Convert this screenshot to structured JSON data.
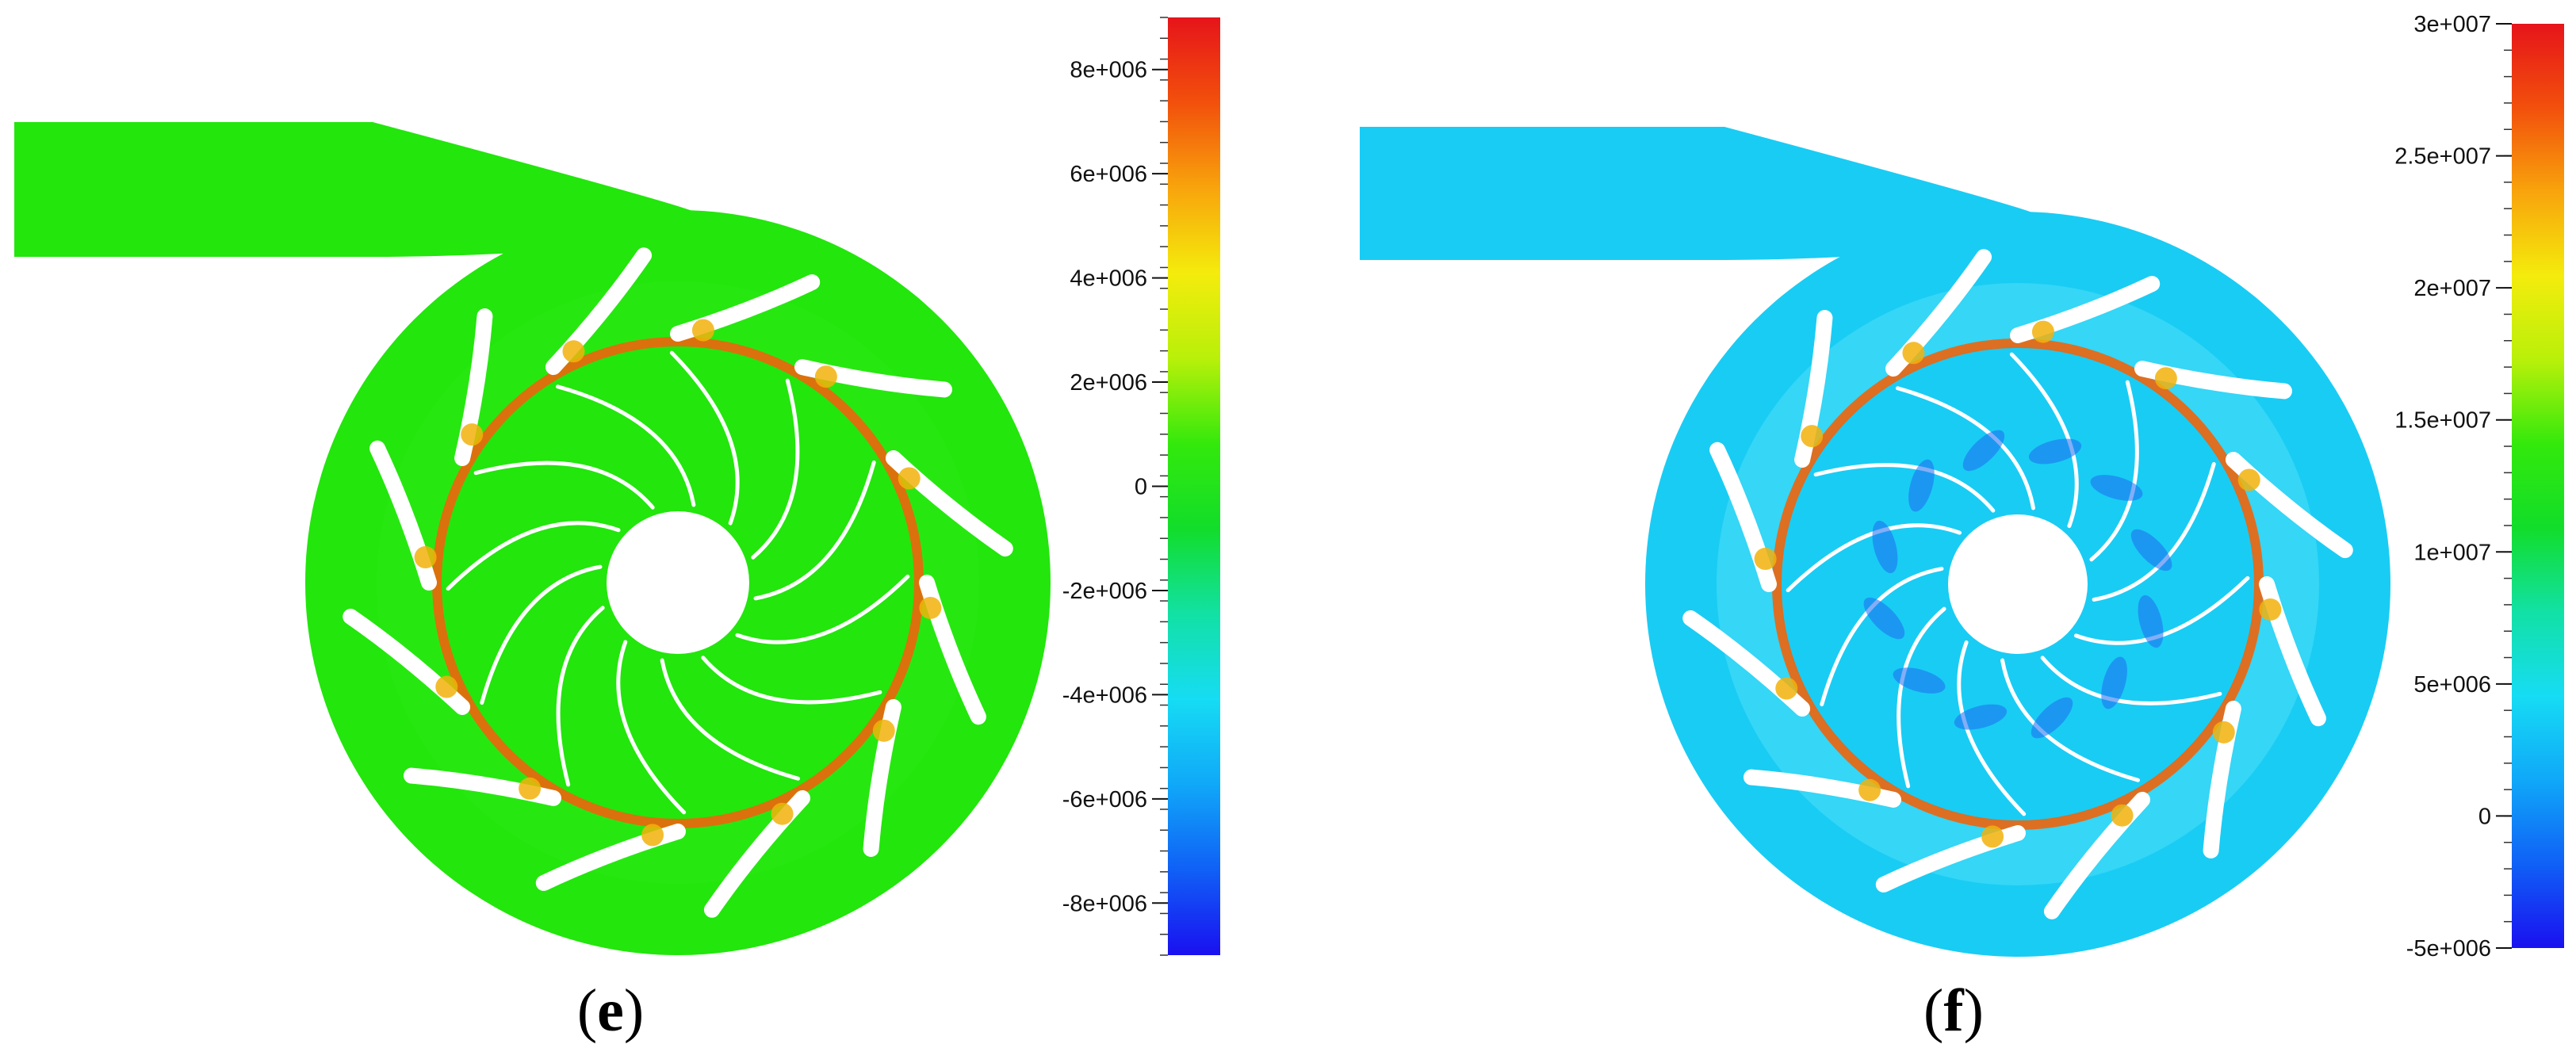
{
  "panels": [
    {
      "id": "e",
      "label_open": "(",
      "label_letter": "e",
      "label_close": ")",
      "field_color": "#22e60c",
      "field_edge_color": "#2aea14",
      "colorbar": {
        "min": -9000000,
        "max": 9000000,
        "tick_labels": [
          "8e+006",
          "6e+006",
          "4e+006",
          "2e+006",
          "0",
          "-2e+006",
          "-4e+006",
          "-6e+006",
          "-8e+006"
        ],
        "tick_values": [
          8000000,
          6000000,
          4000000,
          2000000,
          0,
          -2000000,
          -4000000,
          -6000000,
          -8000000
        ]
      }
    },
    {
      "id": "f",
      "label_open": "(",
      "label_letter": "f",
      "label_close": ")",
      "field_color": "#19ccf4",
      "field_edge_color": "#4cdff7",
      "colorbar": {
        "min": -5000000,
        "max": 30000000,
        "tick_labels": [
          "3e+007",
          "2.5e+007",
          "2e+007",
          "1.5e+007",
          "1e+007",
          "5e+006",
          "0",
          "-5e+006"
        ],
        "tick_values": [
          30000000,
          25000000,
          20000000,
          15000000,
          10000000,
          5000000,
          0,
          -5000000
        ]
      }
    }
  ],
  "colormap": [
    "#1a10f0",
    "#1060f6",
    "#10a8f8",
    "#16dcf4",
    "#12e1a4",
    "#12dd2a",
    "#33e90c",
    "#b8f00a",
    "#f4ec0c",
    "#f8a40c",
    "#f2500c",
    "#e6141a"
  ]
}
